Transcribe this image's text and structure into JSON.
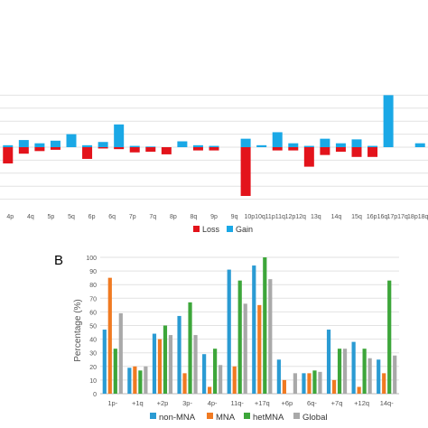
{
  "colors": {
    "loss": "#e3131b",
    "gain": "#1aa8e6",
    "non_mna": "#2a9bd3",
    "mna": "#f07a22",
    "hetmna": "#3da63a",
    "global": "#a9a9a9",
    "grid": "#e2e2e2",
    "axis_text": "#555555"
  },
  "chart_data": [
    {
      "type": "bar",
      "panel_label": "",
      "title": "",
      "xlabel": "",
      "ylabel": "",
      "grid": true,
      "ylim": [
        -9,
        9
      ],
      "categories": [
        "4p",
        "4q",
        "5p",
        "5q",
        "6p",
        "6q",
        "7p",
        "7q",
        "8p",
        "8q",
        "9p",
        "9q",
        "10p",
        "10q",
        "11p",
        "11q",
        "12p",
        "12q",
        "13q",
        "14q",
        "15q",
        "16p",
        "16q",
        "17p",
        "17q",
        "18p",
        "18q"
      ],
      "x_tick_labels": [
        "4p",
        "4q",
        "5p",
        "5q",
        "6p",
        "6q",
        "7p",
        "7q",
        "8p",
        "8q",
        "9p",
        "9q",
        "10p10q",
        "11p11q",
        "12p12q",
        "13q",
        "14q",
        "15q",
        "16p16q",
        "17p17q",
        "18p18q"
      ],
      "legend": {
        "placement": "bottom",
        "entries": [
          "Loss",
          "Gain"
        ]
      },
      "series": [
        {
          "name": "Loss",
          "values": [
            -2.5,
            -1,
            -0.6,
            -0.4,
            0,
            -1.8,
            -0.2,
            -0.3,
            -0.8,
            -0.7,
            -1.1,
            0,
            -0.5,
            -0.5,
            0,
            -7.5,
            0,
            -0.5,
            -0.5,
            -3,
            -1.2,
            -0.7,
            -1.5,
            -1.5,
            0,
            0,
            0
          ]
        },
        {
          "name": "Gain",
          "values": [
            0.3,
            1.1,
            0.6,
            1,
            2,
            0.3,
            0.8,
            3.5,
            0.2,
            0.1,
            0,
            0.9,
            0.3,
            0.2,
            0,
            1.3,
            0.3,
            2.3,
            0.6,
            0.2,
            1.3,
            0.6,
            1.2,
            0.2,
            8,
            0,
            0.6
          ]
        }
      ]
    },
    {
      "type": "bar",
      "panel_label": "B",
      "title": "",
      "xlabel": "",
      "ylabel": "Percentage (%)",
      "ylim": [
        0,
        100
      ],
      "yticks": [
        0,
        10,
        20,
        30,
        40,
        50,
        60,
        70,
        80,
        90,
        100
      ],
      "grid": true,
      "categories": [
        "1p-",
        "+1q",
        "+2p",
        "3p-",
        "4p-",
        "11q-",
        "+17q",
        "+6p",
        "6q-",
        "+7q",
        "+12q",
        "14q-"
      ],
      "legend": {
        "placement": "bottom",
        "entries": [
          "non-MNA",
          "MNA",
          "hetMNA",
          "Global"
        ]
      },
      "series": [
        {
          "name": "non-MNA",
          "values": [
            47,
            19,
            44,
            57,
            29,
            91,
            94,
            25,
            15,
            47,
            38,
            25
          ]
        },
        {
          "name": "MNA",
          "values": [
            85,
            20,
            40,
            15,
            5,
            20,
            65,
            10,
            15,
            10,
            5,
            15
          ]
        },
        {
          "name": "hetMNA",
          "values": [
            33,
            17,
            50,
            67,
            33,
            83,
            100,
            0,
            17,
            33,
            33,
            83
          ]
        },
        {
          "name": "Global",
          "values": [
            59,
            20,
            43,
            43,
            21,
            66,
            84,
            15,
            16,
            33,
            26,
            28
          ]
        }
      ]
    }
  ]
}
